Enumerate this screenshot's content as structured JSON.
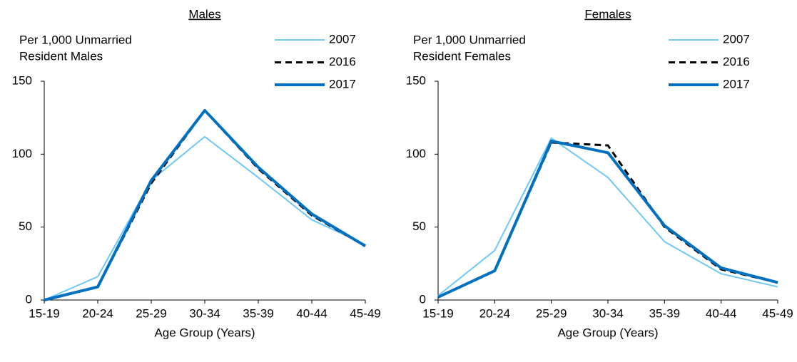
{
  "chart_data": [
    {
      "type": "line",
      "title": "Males",
      "y_label": [
        "Per 1,000 Unmarried",
        "Resident Males"
      ],
      "x_label": "Age Group (Years)",
      "categories": [
        "15-19",
        "20-24",
        "25-29",
        "30-34",
        "35-39",
        "40-44",
        "45-49"
      ],
      "ylim": [
        0,
        150
      ],
      "yticks": [
        0,
        50,
        100,
        150
      ],
      "legend": "upper right",
      "series": [
        {
          "name": "2007",
          "color": "#6fc8f5",
          "dashed": false,
          "width": 2,
          "values": [
            0,
            16,
            82,
            112,
            84,
            55,
            38
          ]
        },
        {
          "name": "2016",
          "color": "#000000",
          "dashed": true,
          "width": 3,
          "values": [
            0,
            9,
            80,
            130,
            90,
            58,
            37
          ]
        },
        {
          "name": "2017",
          "color": "#0070c0",
          "dashed": false,
          "width": 4,
          "values": [
            0,
            9,
            82,
            130,
            91,
            59,
            37
          ]
        }
      ]
    },
    {
      "type": "line",
      "title": "Females",
      "y_label": [
        "Per 1,000 Unmarried",
        "Resident Females"
      ],
      "x_label": "Age Group (Years)",
      "categories": [
        "15-19",
        "20-24",
        "25-29",
        "30-34",
        "35-39",
        "40-44",
        "45-49"
      ],
      "ylim": [
        0,
        150
      ],
      "yticks": [
        0,
        50,
        100,
        150
      ],
      "legend": "upper right",
      "series": [
        {
          "name": "2007",
          "color": "#6fc8f5",
          "dashed": false,
          "width": 2,
          "values": [
            3,
            34,
            111,
            84,
            40,
            18,
            9
          ]
        },
        {
          "name": "2016",
          "color": "#000000",
          "dashed": true,
          "width": 3,
          "values": [
            2,
            20,
            108,
            106,
            50,
            21,
            12
          ]
        },
        {
          "name": "2017",
          "color": "#0070c0",
          "dashed": false,
          "width": 4,
          "values": [
            2,
            20,
            109,
            101,
            51,
            22,
            12
          ]
        }
      ]
    }
  ]
}
